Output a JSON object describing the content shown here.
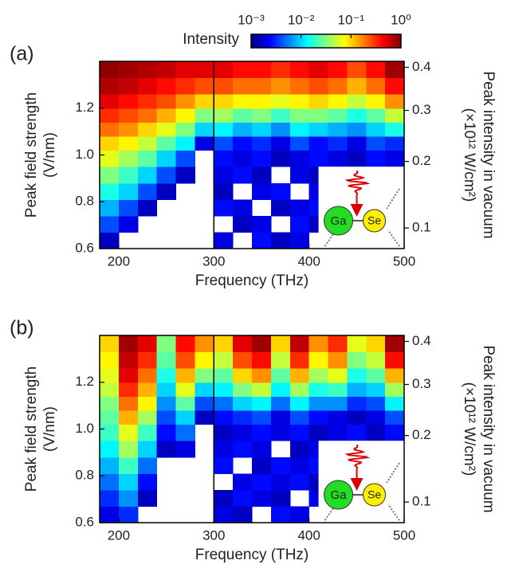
{
  "colorbar": {
    "title": "Intensity",
    "lim": [
      -3,
      0
    ],
    "ticks": [
      {
        "value": -3,
        "label": "10⁻³"
      },
      {
        "value": -2,
        "label": "10⁻²"
      },
      {
        "value": -1,
        "label": "10⁻¹"
      },
      {
        "value": 0,
        "label": "10⁰"
      }
    ],
    "colormap": [
      "#00007f",
      "#0000ff",
      "#0080ff",
      "#00ffff",
      "#80ff80",
      "#ffff00",
      "#ff8000",
      "#ff0000",
      "#7f0000"
    ]
  },
  "chart_data": [
    {
      "type": "heatmap",
      "panel_label": "(a)",
      "xlabel": "Frequency (THz)",
      "ylabel": [
        "Peak field strength",
        "(V/nm)"
      ],
      "y2label": [
        "Peak intensity in vacuum",
        "(×10¹² W/cm²)"
      ],
      "xlim": [
        180,
        500
      ],
      "xticks": [
        200,
        300,
        400,
        500
      ],
      "ylim": [
        0.6,
        1.4
      ],
      "yticks": [
        0.6,
        0.8,
        {
          "value": 1,
          "label": "1.0"
        },
        1.2
      ],
      "y2lim": [
        0.076,
        0.415
      ],
      "y2scale": "sqrt",
      "y2ticks": [
        0.1,
        0.2,
        0.3,
        0.4
      ],
      "inset_labels": [
        "Ga",
        "Se"
      ],
      "xbins": [
        180,
        200,
        220,
        240,
        260,
        280,
        300,
        320,
        340,
        360,
        380,
        400,
        420,
        440,
        460,
        480,
        500
      ],
      "ybins": [
        0.6,
        0.67,
        0.74,
        0.81,
        0.88,
        0.95,
        1.02,
        1.08,
        1.14,
        1.2,
        1.26,
        1.33,
        1.4
      ],
      "z": [
        [
          -2.8,
          null,
          null,
          null,
          null,
          null,
          -2.7,
          null,
          -2.6,
          -2.8,
          -2.7,
          null,
          null,
          null,
          null,
          null
        ],
        [
          -2.4,
          -2.7,
          null,
          null,
          null,
          null,
          null,
          -2.8,
          -2.7,
          null,
          -2.6,
          -2.8,
          null,
          null,
          null,
          null
        ],
        [
          -2.1,
          -2.4,
          -2.8,
          null,
          null,
          null,
          -2.6,
          -2.7,
          null,
          -2.8,
          -2.7,
          -2.6,
          null,
          null,
          null,
          null
        ],
        [
          -1.8,
          -2.0,
          -2.4,
          -2.8,
          null,
          null,
          -2.8,
          null,
          -2.7,
          -2.6,
          null,
          -2.7,
          null,
          null,
          null,
          null
        ],
        [
          -1.5,
          -1.7,
          -2.0,
          -2.4,
          -2.8,
          null,
          -2.7,
          -2.6,
          -2.8,
          null,
          -2.7,
          -2.8,
          null,
          null,
          null,
          null
        ],
        [
          -1.2,
          -1.4,
          -1.6,
          -2.0,
          -2.4,
          null,
          -2.6,
          -2.7,
          -2.6,
          -2.8,
          -2.7,
          -2.6,
          -2.7,
          -2.8,
          -2.6,
          -2.7
        ],
        [
          -1.0,
          -1.1,
          -1.3,
          -1.6,
          -1.9,
          -2.7,
          -2.4,
          -2.6,
          -2.5,
          -2.7,
          -2.4,
          -2.6,
          -2.5,
          -2.7,
          -2.4,
          -2.5
        ],
        [
          -0.7,
          -0.8,
          -1.0,
          -1.2,
          -1.5,
          -2.0,
          -1.9,
          -2.1,
          -2.0,
          -2.2,
          -1.9,
          -2.0,
          -2.1,
          -2.2,
          -2.0,
          -1.8
        ],
        [
          -0.5,
          -0.6,
          -0.7,
          -0.9,
          -1.1,
          -1.5,
          -1.4,
          -1.6,
          -1.5,
          -1.7,
          -1.5,
          -1.5,
          -1.6,
          -1.8,
          -1.6,
          -1.3
        ],
        [
          -0.3,
          -0.4,
          -0.5,
          -0.6,
          -0.8,
          -1.0,
          -1.0,
          -1.1,
          -1.1,
          -1.2,
          -1.1,
          -1.0,
          -1.1,
          -1.3,
          -1.1,
          -0.8
        ],
        [
          -0.15,
          -0.2,
          -0.3,
          -0.4,
          -0.5,
          -0.6,
          -0.6,
          -0.7,
          -0.7,
          -0.8,
          -0.7,
          -0.6,
          -0.7,
          -0.9,
          -0.7,
          -0.4
        ],
        [
          -0.05,
          -0.1,
          -0.15,
          -0.2,
          -0.3,
          -0.3,
          -0.3,
          -0.4,
          -0.4,
          -0.5,
          -0.4,
          -0.3,
          -0.4,
          -0.6,
          -0.4,
          -0.1
        ]
      ]
    },
    {
      "type": "heatmap",
      "panel_label": "(b)",
      "xlabel": "Frequency (THz)",
      "ylabel": [
        "Peak field strength",
        "(V/nm)"
      ],
      "y2label": [
        "Peak intensity in vacuum",
        "(×10¹² W/cm²)"
      ],
      "xlim": [
        180,
        500
      ],
      "xticks": [
        200,
        300,
        400,
        500
      ],
      "ylim": [
        0.6,
        1.4
      ],
      "yticks": [
        0.6,
        0.8,
        {
          "value": 1,
          "label": "1.0"
        },
        1.2
      ],
      "y2lim": [
        0.076,
        0.415
      ],
      "y2scale": "sqrt",
      "y2ticks": [
        0.1,
        0.2,
        0.3,
        0.4
      ],
      "inset_labels": [
        "Ga",
        "Se"
      ],
      "xbins": [
        180,
        200,
        220,
        240,
        260,
        280,
        300,
        320,
        340,
        360,
        380,
        400,
        420,
        440,
        460,
        480,
        500
      ],
      "ybins": [
        0.6,
        0.67,
        0.74,
        0.81,
        0.88,
        0.95,
        1.02,
        1.08,
        1.14,
        1.2,
        1.26,
        1.33,
        1.4
      ],
      "z": [
        [
          -2.7,
          -2.5,
          null,
          null,
          null,
          null,
          -2.7,
          -2.8,
          null,
          -2.6,
          -2.7,
          null,
          null,
          null,
          null,
          null
        ],
        [
          -2.5,
          -2.2,
          -2.8,
          null,
          null,
          null,
          -2.8,
          -2.6,
          -2.7,
          -2.8,
          null,
          -2.7,
          null,
          null,
          null,
          null
        ],
        [
          -2.3,
          -2.0,
          -2.6,
          null,
          null,
          null,
          null,
          -2.7,
          -2.6,
          -2.7,
          -2.6,
          -2.8,
          null,
          null,
          null,
          null
        ],
        [
          -2.1,
          -1.7,
          -2.3,
          null,
          null,
          null,
          -2.6,
          null,
          -2.8,
          -2.6,
          -2.7,
          -2.6,
          null,
          null,
          null,
          null
        ],
        [
          -1.9,
          -1.4,
          -2.0,
          -2.8,
          -2.7,
          null,
          -2.7,
          -2.6,
          -2.7,
          null,
          -2.8,
          -2.7,
          null,
          null,
          null,
          null
        ],
        [
          -1.7,
          -1.2,
          -1.7,
          -2.6,
          -2.3,
          null,
          -2.8,
          -2.7,
          -2.6,
          -2.7,
          -2.6,
          -2.8,
          -2.7,
          -2.6,
          -2.8,
          -2.6
        ],
        [
          -1.6,
          -0.9,
          -1.4,
          -2.4,
          -2.0,
          -2.8,
          -2.6,
          -2.5,
          -2.4,
          -2.7,
          -2.4,
          -2.6,
          -2.7,
          -2.8,
          -2.7,
          -2.4
        ],
        [
          -1.5,
          -0.7,
          -1.1,
          -2.2,
          -1.6,
          -2.4,
          -2.3,
          -2.0,
          -1.9,
          -2.3,
          -1.9,
          -2.2,
          -2.2,
          -2.5,
          -2.4,
          -1.9
        ],
        [
          -1.3,
          -0.5,
          -0.9,
          -2.0,
          -1.2,
          -2.0,
          -1.9,
          -1.5,
          -1.3,
          -1.9,
          -1.4,
          -1.8,
          -1.7,
          -2.1,
          -2.0,
          -1.4
        ],
        [
          -1.2,
          -0.3,
          -0.7,
          -1.8,
          -0.9,
          -1.5,
          -1.6,
          -1.0,
          -0.8,
          -1.6,
          -0.9,
          -1.4,
          -1.2,
          -1.8,
          -1.6,
          -0.9
        ],
        [
          -1.1,
          -0.2,
          -0.5,
          -1.6,
          -0.6,
          -1.1,
          -1.3,
          -0.6,
          -0.4,
          -1.3,
          -0.5,
          -1.1,
          -0.8,
          -1.5,
          -1.3,
          -0.4
        ],
        [
          -1.0,
          -0.1,
          -0.3,
          -1.5,
          -0.4,
          -0.8,
          -1.0,
          -0.3,
          -0.1,
          -1.0,
          -0.2,
          -0.8,
          -0.5,
          -1.2,
          -1.0,
          -0.1
        ]
      ]
    }
  ]
}
